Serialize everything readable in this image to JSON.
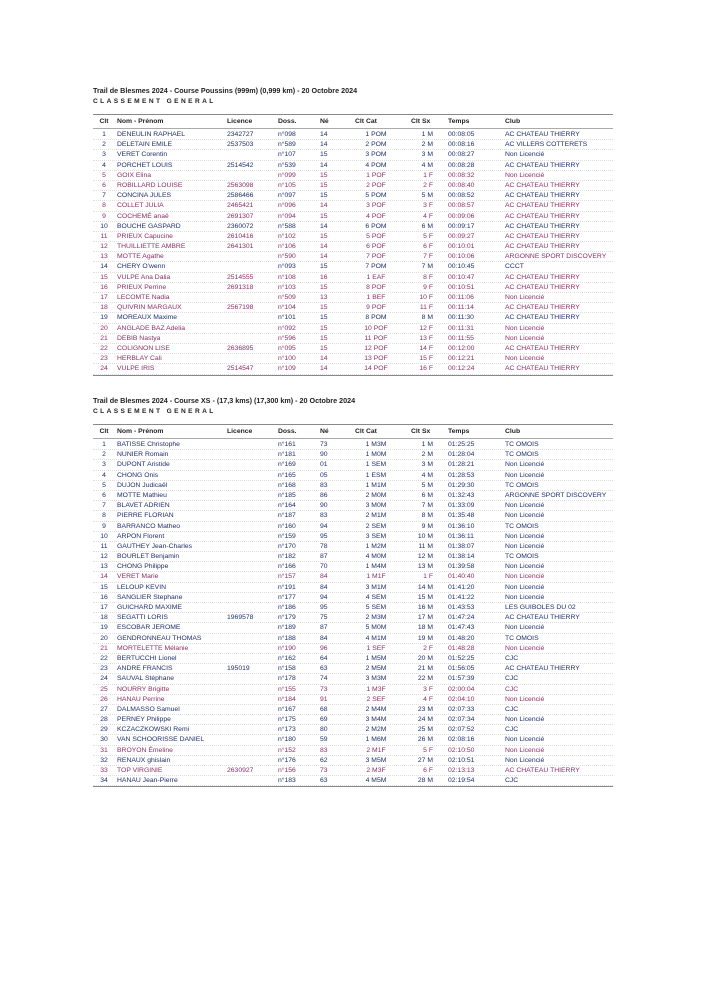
{
  "colors": {
    "male": "#1f2f6b",
    "female": "#8a2f66"
  },
  "columns": [
    "Clt",
    "Nom - Prénom",
    "Licence",
    "Doss.",
    "Né",
    "Clt Cat",
    "Clt Sx",
    "Temps",
    "Club"
  ],
  "races": [
    {
      "title": "Trail de Blesmes 2024 - Course Poussins (999m) (0,999 km) - 20 Octobre 2024",
      "subtitle": "CLASSEMENT GENERAL",
      "rows": [
        [
          "1",
          "DENEULIN RAPHAEL",
          "2342727",
          "n°098",
          "14",
          "1 POM",
          "1 M",
          "00:08:05",
          "AC CHATEAU THIERRY"
        ],
        [
          "2",
          "DELETAIN EMILE",
          "2537503",
          "n°589",
          "14",
          "2 POM",
          "2 M",
          "00:08:16",
          "AC VILLERS COTTERETS"
        ],
        [
          "3",
          "VERET Corentin",
          "",
          "n°107",
          "15",
          "3 POM",
          "3 M",
          "00:08:27",
          "Non Licencié"
        ],
        [
          "4",
          "PORCHET LOUIS",
          "2514542",
          "n°539",
          "14",
          "4 POM",
          "4 M",
          "00:08:28",
          "AC CHATEAU THIERRY"
        ],
        [
          "5",
          "GOIX Elina",
          "",
          "n°099",
          "15",
          "1 POF",
          "1 F",
          "00:08:32",
          "Non Licencié"
        ],
        [
          "6",
          "ROBILLARD LOUISE",
          "2563098",
          "n°105",
          "15",
          "2 POF",
          "2 F",
          "00:08:40",
          "AC CHATEAU THIERRY"
        ],
        [
          "7",
          "CONCINA JULES",
          "2586466",
          "n°097",
          "15",
          "5 POM",
          "5 M",
          "00:08:52",
          "AC CHATEAU THIERRY"
        ],
        [
          "8",
          "COLLET JULIA",
          "2465421",
          "n°096",
          "14",
          "3 POF",
          "3 F",
          "00:08:57",
          "AC CHATEAU THIERRY"
        ],
        [
          "9",
          "COCHEMÉ anaë",
          "2691307",
          "n°094",
          "15",
          "4 POF",
          "4 F",
          "00:09:06",
          "AC CHATEAU THIERRY"
        ],
        [
          "10",
          "BOUCHE GASPARD",
          "2360072",
          "n°588",
          "14",
          "6 POM",
          "6 M",
          "00:09:17",
          "AC CHATEAU THIERRY"
        ],
        [
          "11",
          "PRIEUX Capucine",
          "2610416",
          "n°102",
          "15",
          "5 POF",
          "5 F",
          "00:09:27",
          "AC CHATEAU THIERRY"
        ],
        [
          "12",
          "THUILLIETTE AMBRE",
          "2641301",
          "n°106",
          "14",
          "6 POF",
          "6 F",
          "00:10:01",
          "AC CHATEAU THIERRY"
        ],
        [
          "13",
          "MOTTE Agathe",
          "",
          "n°590",
          "14",
          "7 POF",
          "7 F",
          "00:10:06",
          "ARGONNE SPORT DISCOVERY"
        ],
        [
          "14",
          "CHERY O'wenn",
          "",
          "n°093",
          "15",
          "7 POM",
          "7 M",
          "00:10:45",
          "CCCT"
        ],
        [
          "15",
          "VULPE Ana Dalia",
          "2514555",
          "n°108",
          "16",
          "1 EAF",
          "8 F",
          "00:10:47",
          "AC CHATEAU THIERRY"
        ],
        [
          "16",
          "PRIEUX Perrine",
          "2691318",
          "n°103",
          "15",
          "8 POF",
          "9 F",
          "00:10:51",
          "AC CHATEAU THIERRY"
        ],
        [
          "17",
          "LECOMTE Nadia",
          "",
          "n°509",
          "13",
          "1 BEF",
          "10 F",
          "00:11:06",
          "Non Licencié"
        ],
        [
          "18",
          "QUIVRIN MARGAUX",
          "2567198",
          "n°104",
          "15",
          "9 POF",
          "11 F",
          "00:11:14",
          "AC CHATEAU THIERRY"
        ],
        [
          "19",
          "MOREAUX Maxime",
          "",
          "n°101",
          "15",
          "8 POM",
          "8 M",
          "00:11:30",
          "AC CHATEAU THIERRY"
        ],
        [
          "20",
          "ANGLADE BAZ Adelia",
          "",
          "n°092",
          "15",
          "10 POF",
          "12 F",
          "00:11:31",
          "Non Licencié"
        ],
        [
          "21",
          "DEBIB Nastya",
          "",
          "n°596",
          "15",
          "11 POF",
          "13 F",
          "00:11:55",
          "Non Licencié"
        ],
        [
          "22",
          "COLIGNON LISE",
          "2636895",
          "n°095",
          "15",
          "12 POF",
          "14 F",
          "00:12:00",
          "AC CHATEAU THIERRY"
        ],
        [
          "23",
          "HERBLAY Cali",
          "",
          "n°100",
          "14",
          "13 POF",
          "15 F",
          "00:12:21",
          "Non Licencié"
        ],
        [
          "24",
          "VULPE IRIS",
          "2514547",
          "n°109",
          "14",
          "14 POF",
          "16 F",
          "00:12:24",
          "AC CHATEAU THIERRY"
        ]
      ]
    },
    {
      "title": "Trail de Blesmes 2024 - Course XS - (17,3 kms) (17,300 km) - 20 Octobre 2024",
      "subtitle": "CLASSEMENT GENERAL",
      "rows": [
        [
          "1",
          "BATISSE Christophe",
          "",
          "n°161",
          "73",
          "1 M3M",
          "1 M",
          "01:25:25",
          "TC OMOIS"
        ],
        [
          "2",
          "NUNIER Romain",
          "",
          "n°181",
          "90",
          "1 M0M",
          "2 M",
          "01:28:04",
          "TC OMOIS"
        ],
        [
          "3",
          "DUPONT Aristide",
          "",
          "n°169",
          "01",
          "1 SEM",
          "3 M",
          "01:28:21",
          "Non Licencié"
        ],
        [
          "4",
          "CHONG Onis",
          "",
          "n°165",
          "05",
          "1 ESM",
          "4 M",
          "01:28:53",
          "Non Licencié"
        ],
        [
          "5",
          "DUJON Judicaël",
          "",
          "n°168",
          "83",
          "1 M1M",
          "5 M",
          "01:29:30",
          "TC OMOIS"
        ],
        [
          "6",
          "MOTTE Mathieu",
          "",
          "n°185",
          "86",
          "2 M0M",
          "6 M",
          "01:32:43",
          "ARGONNE SPORT DISCOVERY"
        ],
        [
          "7",
          "BLAVET ADRIEN",
          "",
          "n°164",
          "90",
          "3 M0M",
          "7 M",
          "01:33:09",
          "Non Licencié"
        ],
        [
          "8",
          "PIERRE FLORIAN",
          "",
          "n°187",
          "83",
          "2 M1M",
          "8 M",
          "01:35:48",
          "Non Licencié"
        ],
        [
          "9",
          "BARRANCO Matheo",
          "",
          "n°160",
          "94",
          "2 SEM",
          "9 M",
          "01:36:10",
          "TC OMOIS"
        ],
        [
          "10",
          "ARPON Florent",
          "",
          "n°159",
          "95",
          "3 SEM",
          "10 M",
          "01:36:11",
          "Non Licencié"
        ],
        [
          "11",
          "GAUTHEY Jean-Charles",
          "",
          "n°170",
          "78",
          "1 M2M",
          "11 M",
          "01:38:07",
          "Non Licencié"
        ],
        [
          "12",
          "BOURLET Benjamin",
          "",
          "n°182",
          "87",
          "4 M0M",
          "12 M",
          "01:38:14",
          "TC OMOIS"
        ],
        [
          "13",
          "CHONG Philippe",
          "",
          "n°166",
          "70",
          "1 M4M",
          "13 M",
          "01:39:58",
          "Non Licencié"
        ],
        [
          "14",
          "VERET Marie",
          "",
          "n°157",
          "84",
          "1 M1F",
          "1 F",
          "01:40:40",
          "Non Licencié"
        ],
        [
          "15",
          "LELOUP KEVIN",
          "",
          "n°191",
          "84",
          "3 M1M",
          "14 M",
          "01:41:20",
          "Non Licencié"
        ],
        [
          "16",
          "SANGLIER Stephane",
          "",
          "n°177",
          "94",
          "4 SEM",
          "15 M",
          "01:41:22",
          "Non Licencié"
        ],
        [
          "17",
          "GUICHARD MAXIME",
          "",
          "n°186",
          "95",
          "5 SEM",
          "16 M",
          "01:43:53",
          "LES GUIBOLES DU 02"
        ],
        [
          "18",
          "SEGATTI LORIS",
          "1969578",
          "n°179",
          "75",
          "2 M3M",
          "17 M",
          "01:47:24",
          "AC CHATEAU THIERRY"
        ],
        [
          "19",
          "ESCOBAR JEROME",
          "",
          "n°189",
          "87",
          "5 M0M",
          "18 M",
          "01:47:43",
          "Non Licencié"
        ],
        [
          "20",
          "GENDRONNEAU THOMAS",
          "",
          "n°188",
          "84",
          "4 M1M",
          "19 M",
          "01:48:20",
          "TC OMOIS"
        ],
        [
          "21",
          "MORTELETTE Mélanie",
          "",
          "n°190",
          "96",
          "1 SEF",
          "2 F",
          "01:48:28",
          "Non Licencié"
        ],
        [
          "22",
          "BERTUCCHI Lionel",
          "",
          "n°162",
          "64",
          "1 M5M",
          "20 M",
          "01:52:25",
          "CJC"
        ],
        [
          "23",
          "ANDRE FRANCIS",
          "195019",
          "n°158",
          "63",
          "2 M5M",
          "21 M",
          "01:56:05",
          "AC CHATEAU THIERRY"
        ],
        [
          "24",
          "SAUVAL Stéphane",
          "",
          "n°178",
          "74",
          "3 M3M",
          "22 M",
          "01:57:39",
          "CJC"
        ],
        [
          "25",
          "NOURRY Brigitte",
          "",
          "n°155",
          "73",
          "1 M3F",
          "3 F",
          "02:00:04",
          "CJC"
        ],
        [
          "26",
          "HANAU Perrine",
          "",
          "n°184",
          "91",
          "2 SEF",
          "4 F",
          "02:04:10",
          "Non Licencié"
        ],
        [
          "27",
          "DALMASSO Samuel",
          "",
          "n°167",
          "68",
          "2 M4M",
          "23 M",
          "02:07:33",
          "CJC"
        ],
        [
          "28",
          "PERNEY Philippe",
          "",
          "n°175",
          "69",
          "3 M4M",
          "24 M",
          "02:07:34",
          "Non Licencié"
        ],
        [
          "29",
          "KCZACZKOWSKI Remi",
          "",
          "n°173",
          "80",
          "2 M2M",
          "25 M",
          "02:07:52",
          "CJC"
        ],
        [
          "30",
          "VAN SCHOORISSE DANIEL",
          "",
          "n°180",
          "59",
          "1 M6M",
          "26 M",
          "02:08:16",
          "Non Licencié"
        ],
        [
          "31",
          "BROYON Émeline",
          "",
          "n°152",
          "83",
          "2 M1F",
          "5 F",
          "02:10:50",
          "Non Licencié"
        ],
        [
          "32",
          "RENAUX ghislain",
          "",
          "n°176",
          "62",
          "3 M5M",
          "27 M",
          "02:10:51",
          "Non Licencié"
        ],
        [
          "33",
          "TOP VIRGINIE",
          "2630927",
          "n°156",
          "73",
          "2 M3F",
          "6 F",
          "02:13:13",
          "AC CHATEAU THIERRY"
        ],
        [
          "34",
          "HANAU Jean-Pierre",
          "",
          "n°183",
          "63",
          "4 M5M",
          "28 M",
          "02:19:54",
          "CJC"
        ]
      ]
    }
  ]
}
